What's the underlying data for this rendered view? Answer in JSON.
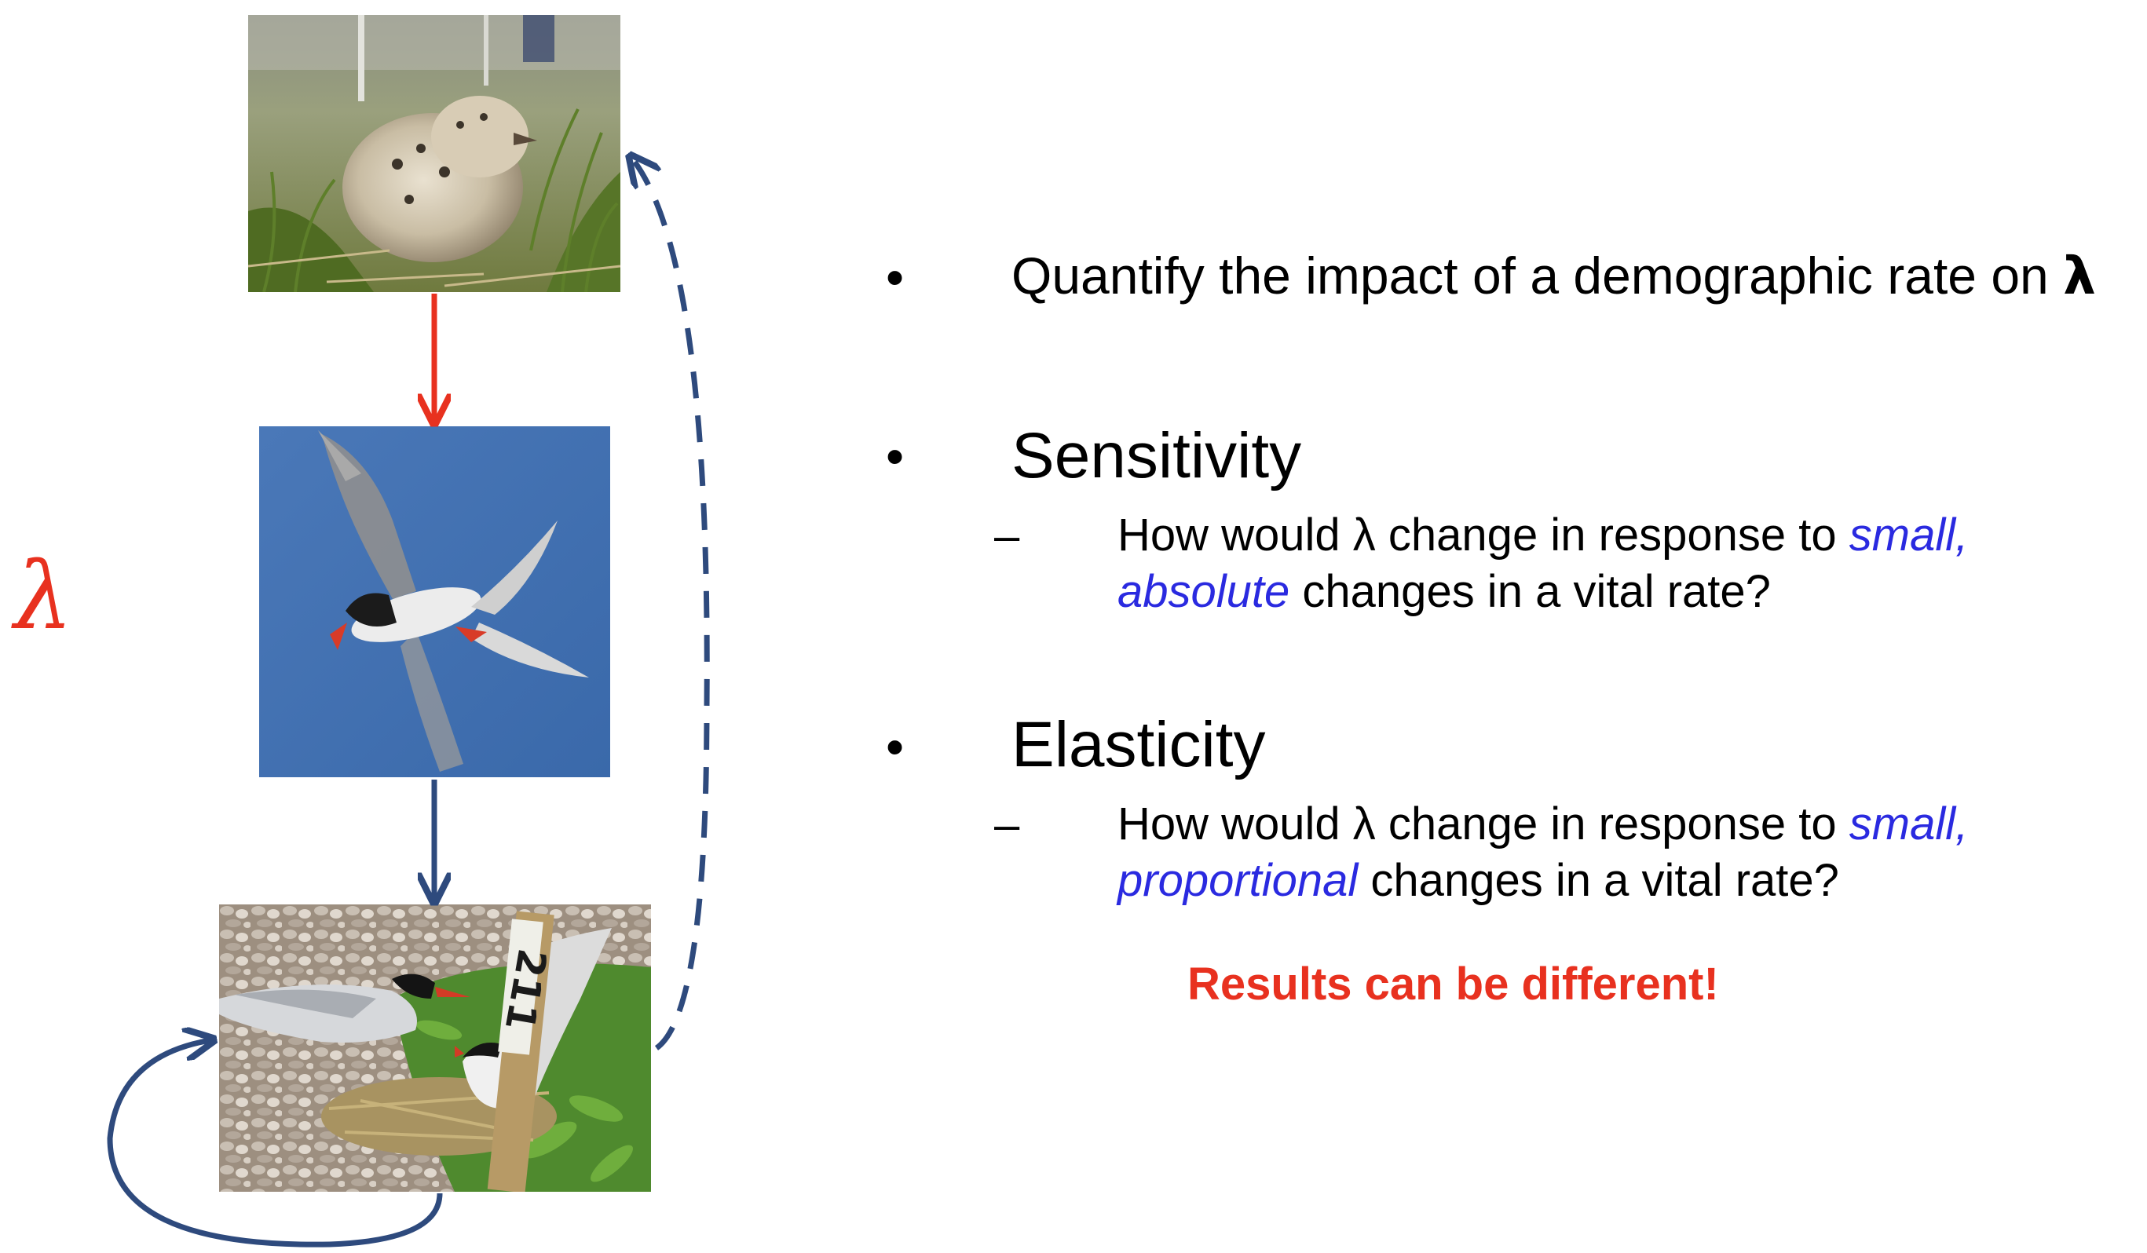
{
  "lambda_symbol": "λ",
  "bullets": [
    {
      "text": "Quantify the impact of a demographic rate on ",
      "suffix": "λ"
    },
    {
      "heading": "Sensitivity",
      "sub_prefix": "How would λ change in response to ",
      "sub_emph_line1": "small,",
      "sub_emph_line2": "absolute",
      "sub_suffix": " changes in a vital rate?"
    },
    {
      "heading": "Elasticity",
      "sub_prefix": "How would λ change in response to ",
      "sub_emph_line1": "small,",
      "sub_emph_line2": "proportional",
      "sub_suffix": " changes in a vital rate?"
    }
  ],
  "bullet_glyph": "•",
  "dash_glyph": "–",
  "results_note": "Results can be different!",
  "colors": {
    "red_accent": "#e8311f",
    "blue_arrow": "#2e4a7d",
    "emphasis_blue": "#2a2ae0",
    "results_red": "#e8311f",
    "lambda_red": "#e8311f"
  },
  "photos": [
    {
      "name": "tern-chick-photo"
    },
    {
      "name": "flying-tern-photo"
    },
    {
      "name": "nesting-tern-photo",
      "marker_text": "211"
    }
  ]
}
